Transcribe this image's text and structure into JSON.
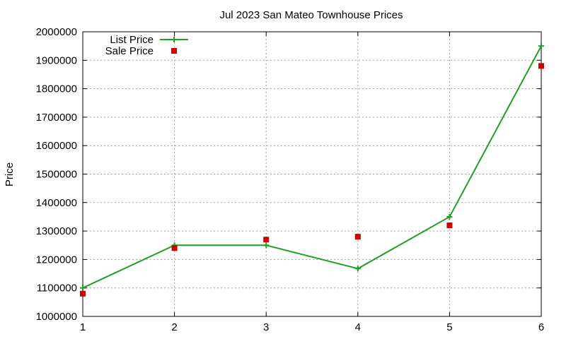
{
  "chart_data": {
    "type": "line",
    "title": "Jul 2023 San Mateo Townhouse Prices",
    "xlabel": "",
    "ylabel": "Price",
    "xlim": [
      1,
      6
    ],
    "ylim": [
      1000000,
      2000000
    ],
    "x_ticks": [
      "1",
      "2",
      "3",
      "4",
      "5",
      "6"
    ],
    "y_ticks": [
      "1000000",
      "1100000",
      "1200000",
      "1300000",
      "1400000",
      "1500000",
      "1600000",
      "1700000",
      "1800000",
      "1900000",
      "2000000"
    ],
    "grid": true,
    "legend_position": "top-left",
    "x": [
      1,
      2,
      3,
      4,
      5,
      6
    ],
    "series": [
      {
        "name": "List Price",
        "style": "line-with-plus-markers",
        "color": "#1f9e1f",
        "values": [
          1100000,
          1250000,
          1250000,
          1168000,
          1350000,
          1950000
        ]
      },
      {
        "name": "Sale Price",
        "style": "square-markers",
        "color": "#cc0000",
        "values": [
          1080000,
          1240000,
          1270000,
          1280000,
          1320000,
          1880000
        ]
      }
    ]
  }
}
